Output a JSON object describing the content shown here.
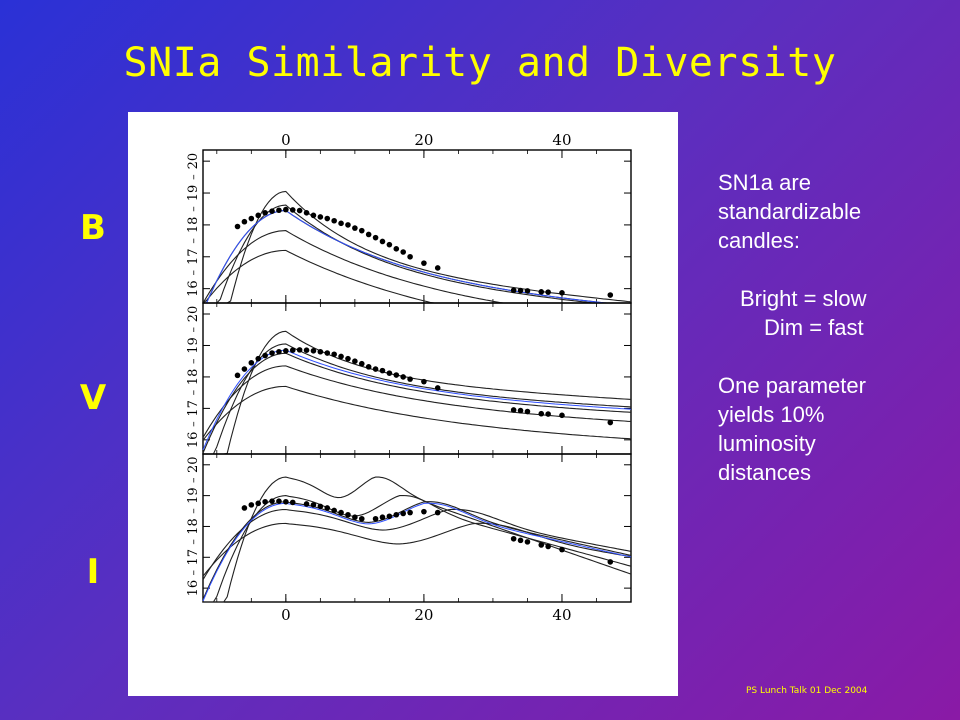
{
  "slide": {
    "title": "SNIa Similarity and Diversity",
    "footer": "PS Lunch Talk 01 Dec 2004",
    "band_labels": [
      "B",
      "V",
      "I"
    ],
    "side_text": {
      "line1": "SN1a are",
      "line2": "standardizable",
      "line3": "candles:",
      "line4": "Bright = slow",
      "line5": "Dim = fast",
      "line6": "One parameter",
      "line7": "yields  10%",
      "line8": "luminosity",
      "line9": "distances"
    },
    "colors": {
      "title": "#ffff00",
      "bg_start": "#2a31d6",
      "bg_end": "#8a1aa6",
      "fit_line": "#3050ff"
    }
  },
  "chart_data": {
    "type": "line",
    "x_ticks": [
      "0",
      "20",
      "40"
    ],
    "x_tick_values": [
      0,
      20,
      40
    ],
    "xlim": [
      -12,
      50
    ],
    "panels": [
      {
        "band": "B",
        "y_ticks": [
          "20",
          "19",
          "18",
          "17",
          "16"
        ],
        "y_tick_values": [
          20,
          19,
          18,
          17,
          16
        ],
        "ylim": [
          15.55,
          20.35
        ],
        "template_peaks": [
          19.05,
          18.62,
          18.45,
          17.82,
          17.2
        ],
        "fit_peak": 18.45,
        "points": [
          [
            -7,
            17.95
          ],
          [
            -6,
            18.1
          ],
          [
            -5,
            18.2
          ],
          [
            -4,
            18.3
          ],
          [
            -3,
            18.38
          ],
          [
            -2,
            18.43
          ],
          [
            -1,
            18.46
          ],
          [
            0,
            18.48
          ],
          [
            1,
            18.47
          ],
          [
            2,
            18.45
          ],
          [
            3,
            18.38
          ],
          [
            4,
            18.3
          ],
          [
            5,
            18.25
          ],
          [
            6,
            18.2
          ],
          [
            7,
            18.13
          ],
          [
            8,
            18.05
          ],
          [
            9,
            18.0
          ],
          [
            10,
            17.9
          ],
          [
            11,
            17.82
          ],
          [
            12,
            17.7
          ],
          [
            13,
            17.6
          ],
          [
            14,
            17.48
          ],
          [
            15,
            17.38
          ],
          [
            16,
            17.25
          ],
          [
            17,
            17.15
          ],
          [
            18,
            17.0
          ],
          [
            20,
            16.8
          ],
          [
            22,
            16.65
          ],
          [
            33,
            15.95
          ],
          [
            34,
            15.94
          ],
          [
            35,
            15.93
          ],
          [
            37,
            15.9
          ],
          [
            38,
            15.89
          ],
          [
            40,
            15.87
          ],
          [
            47,
            15.8
          ]
        ]
      },
      {
        "band": "V",
        "y_ticks": [
          "20",
          "19",
          "18",
          "17",
          "16"
        ],
        "y_tick_values": [
          20,
          19,
          18,
          17,
          16
        ],
        "ylim": [
          15.55,
          20.35
        ],
        "template_peaks": [
          19.45,
          19.05,
          18.75,
          18.35,
          17.7
        ],
        "fit_peak": 18.85,
        "points": [
          [
            -7,
            18.05
          ],
          [
            -6,
            18.25
          ],
          [
            -5,
            18.45
          ],
          [
            -4,
            18.58
          ],
          [
            -3,
            18.68
          ],
          [
            -2,
            18.76
          ],
          [
            -1,
            18.8
          ],
          [
            0,
            18.83
          ],
          [
            1,
            18.85
          ],
          [
            2,
            18.86
          ],
          [
            3,
            18.85
          ],
          [
            4,
            18.83
          ],
          [
            5,
            18.8
          ],
          [
            6,
            18.76
          ],
          [
            7,
            18.72
          ],
          [
            8,
            18.65
          ],
          [
            9,
            18.58
          ],
          [
            10,
            18.5
          ],
          [
            11,
            18.42
          ],
          [
            12,
            18.32
          ],
          [
            13,
            18.25
          ],
          [
            14,
            18.2
          ],
          [
            15,
            18.12
          ],
          [
            16,
            18.06
          ],
          [
            17,
            18.0
          ],
          [
            18,
            17.93
          ],
          [
            20,
            17.85
          ],
          [
            22,
            17.65
          ],
          [
            33,
            16.95
          ],
          [
            34,
            16.93
          ],
          [
            35,
            16.9
          ],
          [
            37,
            16.83
          ],
          [
            38,
            16.82
          ],
          [
            40,
            16.78
          ],
          [
            47,
            16.55
          ]
        ]
      },
      {
        "band": "I",
        "y_ticks": [
          "20",
          "19",
          "18",
          "17",
          "16"
        ],
        "y_tick_values": [
          20,
          19,
          18,
          17,
          16
        ],
        "ylim": [
          15.55,
          20.35
        ],
        "template_peaks": [
          19.6,
          19.0,
          18.8,
          18.55,
          18.1
        ],
        "fit_peak": 18.75,
        "points": [
          [
            -6,
            18.6
          ],
          [
            -5,
            18.7
          ],
          [
            -4,
            18.75
          ],
          [
            -3,
            18.8
          ],
          [
            -2,
            18.82
          ],
          [
            -1,
            18.82
          ],
          [
            0,
            18.8
          ],
          [
            1,
            18.78
          ],
          [
            3,
            18.73
          ],
          [
            4,
            18.7
          ],
          [
            5,
            18.65
          ],
          [
            6,
            18.6
          ],
          [
            7,
            18.52
          ],
          [
            8,
            18.45
          ],
          [
            9,
            18.38
          ],
          [
            10,
            18.3
          ],
          [
            11,
            18.25
          ],
          [
            13,
            18.25
          ],
          [
            14,
            18.3
          ],
          [
            15,
            18.33
          ],
          [
            16,
            18.38
          ],
          [
            17,
            18.42
          ],
          [
            18,
            18.45
          ],
          [
            20,
            18.48
          ],
          [
            22,
            18.45
          ],
          [
            33,
            17.6
          ],
          [
            34,
            17.55
          ],
          [
            35,
            17.5
          ],
          [
            37,
            17.4
          ],
          [
            38,
            17.35
          ],
          [
            40,
            17.25
          ],
          [
            47,
            16.85
          ]
        ]
      }
    ]
  }
}
